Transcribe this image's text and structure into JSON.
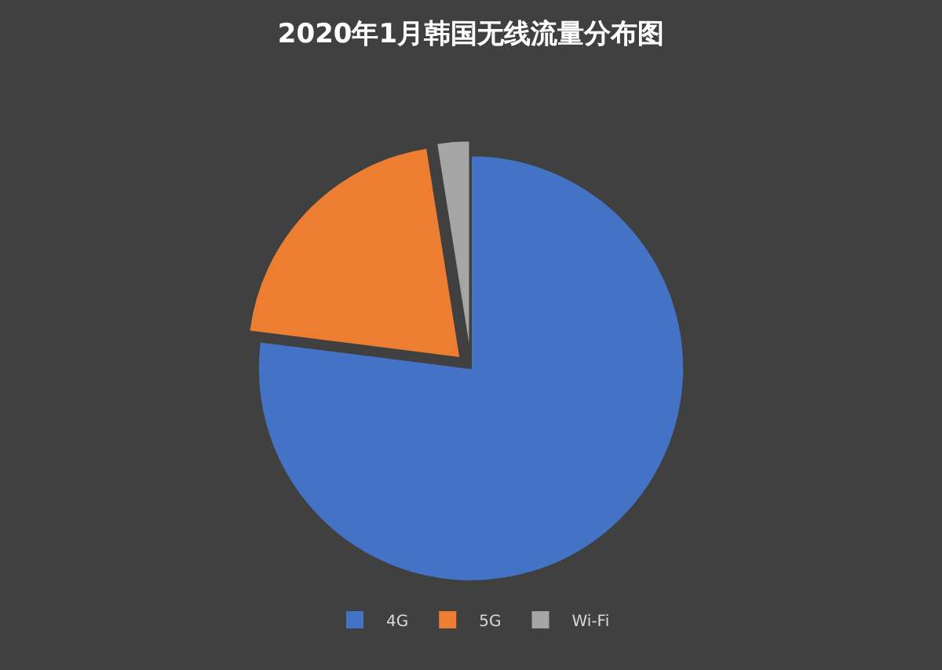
{
  "chart_data": {
    "type": "pie",
    "title": "2020年1月韩国无线流量分布图",
    "categories": [
      "4G",
      "5G",
      "Wi-Fi"
    ],
    "values": [
      77,
      20.5,
      2.5
    ],
    "colors": [
      "#4472c4",
      "#ed7d31",
      "#a5a5a5"
    ],
    "legend": "bottom"
  }
}
